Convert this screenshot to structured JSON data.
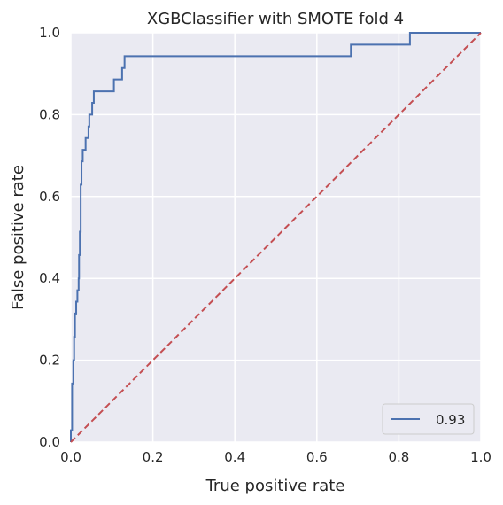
{
  "chart_data": {
    "type": "line",
    "title": "XGBClassifier with SMOTE fold 4",
    "xlabel": "True positive rate",
    "ylabel": "False positive rate",
    "xlim": [
      0,
      1
    ],
    "ylim": [
      0,
      1
    ],
    "xticks": [
      "0.0",
      "0.2",
      "0.4",
      "0.6",
      "0.8",
      "1.0"
    ],
    "yticks": [
      "0.0",
      "0.2",
      "0.4",
      "0.6",
      "0.8",
      "1.0"
    ],
    "grid": true,
    "legend_position": "lower-right",
    "series": [
      {
        "name": "0.93",
        "color": "#4c72b0",
        "points": [
          [
            0.0,
            0.0
          ],
          [
            0.0,
            0.029
          ],
          [
            0.003,
            0.029
          ],
          [
            0.003,
            0.143
          ],
          [
            0.006,
            0.143
          ],
          [
            0.006,
            0.2
          ],
          [
            0.008,
            0.2
          ],
          [
            0.008,
            0.257
          ],
          [
            0.01,
            0.257
          ],
          [
            0.01,
            0.314
          ],
          [
            0.013,
            0.314
          ],
          [
            0.013,
            0.343
          ],
          [
            0.016,
            0.343
          ],
          [
            0.016,
            0.371
          ],
          [
            0.019,
            0.371
          ],
          [
            0.019,
            0.4
          ],
          [
            0.02,
            0.4
          ],
          [
            0.02,
            0.457
          ],
          [
            0.022,
            0.457
          ],
          [
            0.022,
            0.514
          ],
          [
            0.024,
            0.514
          ],
          [
            0.024,
            0.629
          ],
          [
            0.026,
            0.629
          ],
          [
            0.026,
            0.686
          ],
          [
            0.029,
            0.686
          ],
          [
            0.029,
            0.714
          ],
          [
            0.036,
            0.714
          ],
          [
            0.036,
            0.743
          ],
          [
            0.043,
            0.743
          ],
          [
            0.043,
            0.771
          ],
          [
            0.045,
            0.771
          ],
          [
            0.045,
            0.8
          ],
          [
            0.052,
            0.8
          ],
          [
            0.052,
            0.829
          ],
          [
            0.056,
            0.829
          ],
          [
            0.056,
            0.857
          ],
          [
            0.105,
            0.857
          ],
          [
            0.105,
            0.886
          ],
          [
            0.125,
            0.886
          ],
          [
            0.125,
            0.914
          ],
          [
            0.131,
            0.914
          ],
          [
            0.131,
            0.943
          ],
          [
            0.683,
            0.943
          ],
          [
            0.683,
            0.971
          ],
          [
            0.827,
            0.971
          ],
          [
            0.827,
            1.0
          ],
          [
            1.0,
            1.0
          ]
        ]
      },
      {
        "name": "",
        "color": "#c44e52",
        "style": "dashed",
        "points": [
          [
            0,
            0
          ],
          [
            1,
            1
          ]
        ]
      }
    ],
    "legend": [
      {
        "label": "0.93",
        "color": "#4c72b0"
      }
    ]
  }
}
